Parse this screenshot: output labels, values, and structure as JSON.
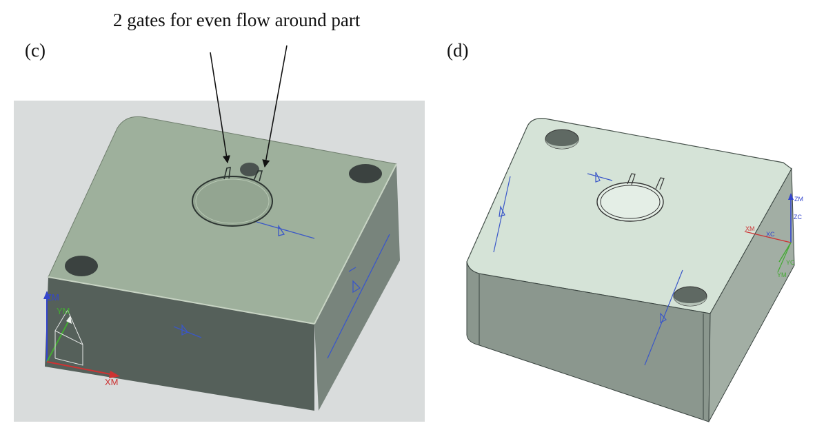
{
  "caption": "2 gates for even flow around part",
  "panels": [
    {
      "label": "(c)",
      "axes": {
        "zm": "ZM",
        "ym": "YM",
        "xm": "XM"
      }
    },
    {
      "label": "(d)",
      "axes": {
        "zm": "ZM",
        "zc": "ZC",
        "xm": "XM",
        "xc": "XC",
        "yc": "YC",
        "ym": "YM"
      }
    }
  ],
  "colors": {
    "panel_c_background": "#d9dcdc",
    "panel_c_top_face": "#9eb09c",
    "panel_c_side_face": "#55605a",
    "panel_d_top_face": "#d5e3d7",
    "panel_d_side_face": "#8b978e",
    "axis_z": "#3344cc",
    "axis_y": "#44aa33",
    "axis_x": "#cc3333",
    "sketch_lines": "#3a57c8"
  }
}
